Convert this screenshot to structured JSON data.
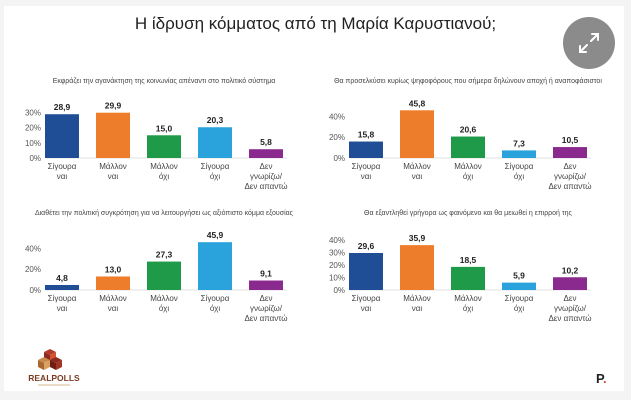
{
  "title": "Η ίδρυση κόμματος από τη Μαρία Καρυστιανού;",
  "brand": {
    "realpolls_text": "REALPOLLS",
    "p_logo": "P",
    "p_dot": "."
  },
  "icons": {
    "expand": "expand-arrows-icon"
  },
  "colors": {
    "sigoura_nai": "#1f4e96",
    "mallon_nai": "#ee7d2b",
    "mallon_oxi": "#1e9a48",
    "sigoura_oxi": "#2aa3dc",
    "den_gnorizo": "#8b2a8e"
  },
  "chart_data": [
    {
      "type": "bar",
      "title": "Εκφράζει την αγανάκτηση της κοινωνίας απέναντι στο πολιτικό σύστημα",
      "categories": [
        "Σίγουρα ναι",
        "Μάλλον ναι",
        "Μάλλον όχι",
        "Σίγουρα όχι",
        "Δεν γνωρίζω/ Δεν απαντώ"
      ],
      "category_lines": [
        [
          "Σίγουρα",
          "ναι"
        ],
        [
          "Μάλλον",
          "ναι"
        ],
        [
          "Μάλλον",
          "όχι"
        ],
        [
          "Σίγουρα",
          "όχι"
        ],
        [
          "Δεν",
          "γνωρίζω/",
          "Δεν απαντώ"
        ]
      ],
      "values": [
        28.9,
        29.9,
        15.0,
        20.3,
        5.8
      ],
      "value_labels": [
        "28,9",
        "29,9",
        "15,0",
        "20,3",
        "5,8"
      ],
      "yticks": [
        "0%",
        "10%",
        "20%",
        "30%"
      ],
      "ytick_values": [
        0,
        10,
        20,
        30
      ],
      "ylim": [
        0,
        33
      ]
    },
    {
      "type": "bar",
      "title": "Θα προσελκύσει κυρίως ψηφοφόρους που σήμερα δηλώνουν αποχή ή αναποφάσιστοι",
      "categories": [
        "Σίγουρα ναι",
        "Μάλλον ναι",
        "Μάλλον όχι",
        "Σίγουρα όχι",
        "Δεν γνωρίζω/ Δεν απαντώ"
      ],
      "category_lines": [
        [
          "Σίγουρα",
          "ναι"
        ],
        [
          "Μάλλον",
          "ναι"
        ],
        [
          "Μάλλον",
          "όχι"
        ],
        [
          "Σίγουρα",
          "όχι"
        ],
        [
          "Δεν",
          "γνωρίζω/",
          "Δεν απαντώ"
        ]
      ],
      "values": [
        15.8,
        45.8,
        20.6,
        7.3,
        10.5
      ],
      "value_labels": [
        "15,8",
        "45,8",
        "20,6",
        "7,3",
        "10,5"
      ],
      "yticks": [
        "0%",
        "20%",
        "40%"
      ],
      "ytick_values": [
        0,
        20,
        40
      ],
      "ylim": [
        0,
        48
      ]
    },
    {
      "type": "bar",
      "title": "Διαθέτει την πολιτική συγκρότηση για να λειτουργήσει ως αξιόπιστο κόμμα εξουσίας",
      "categories": [
        "Σίγουρα ναι",
        "Μάλλον ναι",
        "Μάλλον όχι",
        "Σίγουρα όχι",
        "Δεν γνωρίζω/ Δεν απαντώ"
      ],
      "category_lines": [
        [
          "Σίγουρα",
          "ναι"
        ],
        [
          "Μάλλον",
          "ναι"
        ],
        [
          "Μάλλον",
          "όχι"
        ],
        [
          "Σίγουρα",
          "όχι"
        ],
        [
          "Δεν",
          "γνωρίζω/",
          "Δεν απαντώ"
        ]
      ],
      "values": [
        4.8,
        13.0,
        27.3,
        45.9,
        9.1
      ],
      "value_labels": [
        "4,8",
        "13,0",
        "27,3",
        "45,9",
        "9,1"
      ],
      "yticks": [
        "0%",
        "20%",
        "40%"
      ],
      "ytick_values": [
        0,
        20,
        40
      ],
      "ylim": [
        0,
        48
      ]
    },
    {
      "type": "bar",
      "title": "Θα εξαντληθεί γρήγορα ως φαινόμενο και θα μειωθεί η επιρροή της",
      "categories": [
        "Σίγουρα ναι",
        "Μάλλον ναι",
        "Μάλλον όχι",
        "Σίγουρα όχι",
        "Δεν γνωρίζω/ Δεν απαντώ"
      ],
      "category_lines": [
        [
          "Σίγουρα",
          "ναι"
        ],
        [
          "Μάλλον",
          "ναι"
        ],
        [
          "Μάλλον",
          "όχι"
        ],
        [
          "Σίγουρα",
          "όχι"
        ],
        [
          "Δεν",
          "γνωρίζω/",
          "Δεν απαντώ"
        ]
      ],
      "values": [
        29.6,
        35.9,
        18.5,
        5.9,
        10.2
      ],
      "value_labels": [
        "29,6",
        "35,9",
        "18,5",
        "5,9",
        "10,2"
      ],
      "yticks": [
        "0%",
        "10%",
        "20%",
        "30%",
        "40%"
      ],
      "ytick_values": [
        0,
        10,
        20,
        30,
        40
      ],
      "ylim": [
        0,
        40
      ]
    }
  ]
}
